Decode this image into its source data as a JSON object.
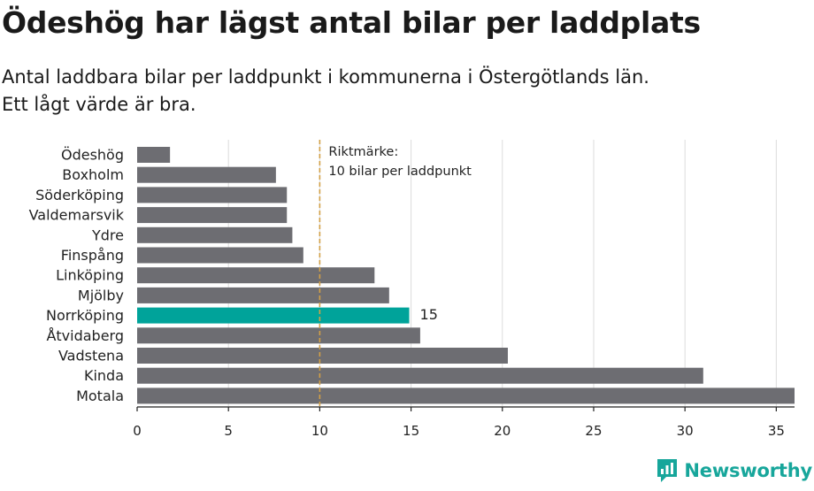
{
  "title": "Ödeshög har lägst antal bilar per laddplats",
  "subtitle": {
    "line1": "Antal laddbara bilar per laddpunkt i kommunerna i Östergötlands län.",
    "line2": "Ett lågt värde är bra."
  },
  "colors": {
    "bar": "#6d6d72",
    "highlight": "#00a39a",
    "reference": "#d3a046",
    "grid": "#dcdcdc",
    "axis": "#222222",
    "brand": "#17a69b"
  },
  "chart_data": {
    "type": "bar",
    "orientation": "horizontal",
    "categories": [
      "Ödeshög",
      "Boxholm",
      "Söderköping",
      "Valdemarsvik",
      "Ydre",
      "Finspång",
      "Linköping",
      "Mjölby",
      "Norrköping",
      "Åtvidaberg",
      "Vadstena",
      "Kinda",
      "Motala"
    ],
    "values": [
      1.8,
      7.6,
      8.2,
      8.2,
      8.5,
      9.1,
      13.0,
      13.8,
      14.9,
      15.5,
      20.3,
      31.0,
      36.0
    ],
    "highlight": {
      "category": "Norrköping",
      "label": "15"
    },
    "reference_line": {
      "value": 10,
      "label_line1": "Riktmärke:",
      "label_line2": "10 bilar per laddpunkt"
    },
    "xlim": [
      0,
      36
    ],
    "xticks": [
      0,
      5,
      10,
      15,
      20,
      25,
      30,
      35
    ],
    "xlabel": "",
    "ylabel": "",
    "grid": "vertical"
  },
  "logo": {
    "name": "Newsworthy",
    "icon": "newsworthy-logo-icon"
  }
}
